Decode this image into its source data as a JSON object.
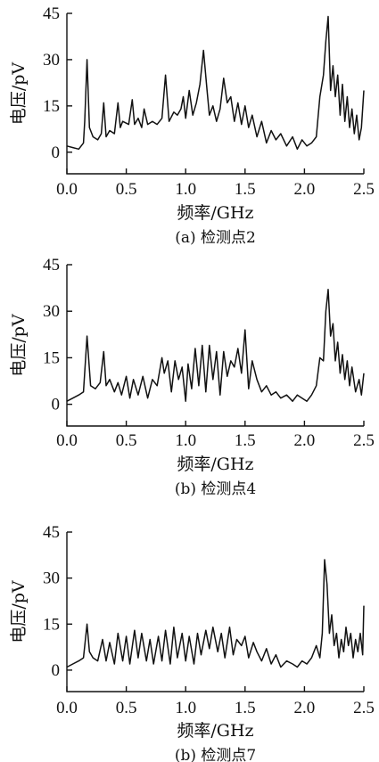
{
  "chart_data": [
    {
      "type": "line",
      "caption": "(a) 检测点2",
      "xlabel": "频率/GHz",
      "ylabel": "电压/pV",
      "xlim": [
        0,
        2.5
      ],
      "ylim": [
        -7,
        45
      ],
      "xticks": [
        "0.0",
        "0.5",
        "1.0",
        "1.5",
        "2.0",
        "2.5"
      ],
      "yticks": [
        "0",
        "15",
        "30",
        "45"
      ],
      "series": [
        {
          "x": [
            0.0,
            0.05,
            0.1,
            0.14,
            0.15,
            0.17,
            0.19,
            0.22,
            0.26,
            0.29,
            0.31,
            0.33,
            0.36,
            0.4,
            0.43,
            0.45,
            0.47,
            0.52,
            0.55,
            0.57,
            0.6,
            0.63,
            0.65,
            0.68,
            0.72,
            0.76,
            0.8,
            0.83,
            0.86,
            0.9,
            0.93,
            0.96,
            0.98,
            1.0,
            1.03,
            1.06,
            1.09,
            1.12,
            1.15,
            1.18,
            1.2,
            1.23,
            1.26,
            1.29,
            1.32,
            1.35,
            1.38,
            1.41,
            1.44,
            1.47,
            1.5,
            1.53,
            1.56,
            1.6,
            1.64,
            1.68,
            1.72,
            1.76,
            1.8,
            1.85,
            1.9,
            1.94,
            1.98,
            2.02,
            2.06,
            2.1,
            2.13,
            2.16,
            2.18,
            2.2,
            2.22,
            2.24,
            2.26,
            2.28,
            2.3,
            2.32,
            2.34,
            2.36,
            2.38,
            2.4,
            2.42,
            2.44,
            2.46,
            2.48,
            2.5
          ],
          "y": [
            2,
            1.5,
            1,
            3,
            10,
            30,
            8,
            5,
            4,
            6,
            16,
            5,
            7,
            6,
            16,
            8,
            10,
            9,
            17,
            9,
            11,
            8,
            14,
            9,
            10,
            9,
            11,
            25,
            10,
            13,
            12,
            14,
            18,
            11,
            20,
            12,
            16,
            22,
            33,
            20,
            12,
            15,
            10,
            14,
            24,
            16,
            18,
            10,
            16,
            9,
            15,
            8,
            12,
            5,
            10,
            3,
            7,
            4,
            6,
            2,
            5,
            1,
            4,
            2,
            3,
            5,
            18,
            25,
            36,
            44,
            20,
            28,
            18,
            25,
            12,
            22,
            10,
            18,
            8,
            14,
            6,
            12,
            4,
            8,
            20
          ]
        }
      ]
    },
    {
      "type": "line",
      "caption": "(b) 检测点4",
      "xlabel": "频率/GHz",
      "ylabel": "电压/pV",
      "xlim": [
        0,
        2.5
      ],
      "ylim": [
        -7,
        45
      ],
      "xticks": [
        "0.0",
        "0.5",
        "1.0",
        "1.5",
        "2.0",
        "2.5"
      ],
      "yticks": [
        "0",
        "15",
        "30",
        "45"
      ],
      "series": [
        {
          "x": [
            0.0,
            0.05,
            0.1,
            0.14,
            0.17,
            0.2,
            0.24,
            0.28,
            0.31,
            0.33,
            0.36,
            0.4,
            0.43,
            0.46,
            0.5,
            0.53,
            0.56,
            0.6,
            0.64,
            0.68,
            0.72,
            0.76,
            0.8,
            0.82,
            0.85,
            0.88,
            0.91,
            0.94,
            0.97,
            1.0,
            1.02,
            1.05,
            1.08,
            1.11,
            1.14,
            1.17,
            1.2,
            1.23,
            1.26,
            1.29,
            1.32,
            1.35,
            1.38,
            1.41,
            1.44,
            1.47,
            1.5,
            1.53,
            1.56,
            1.6,
            1.64,
            1.68,
            1.72,
            1.76,
            1.8,
            1.85,
            1.9,
            1.94,
            1.98,
            2.02,
            2.06,
            2.1,
            2.13,
            2.16,
            2.18,
            2.2,
            2.22,
            2.24,
            2.26,
            2.28,
            2.3,
            2.32,
            2.34,
            2.36,
            2.38,
            2.4,
            2.43,
            2.46,
            2.48,
            2.5
          ],
          "y": [
            1,
            2,
            3,
            4,
            22,
            6,
            5,
            7,
            17,
            6,
            8,
            4,
            7,
            3,
            9,
            2,
            8,
            3,
            9,
            2,
            8,
            6,
            15,
            10,
            14,
            4,
            14,
            8,
            12,
            1,
            13,
            5,
            18,
            6,
            19,
            4,
            19,
            8,
            17,
            3,
            17,
            9,
            14,
            12,
            18,
            10,
            24,
            5,
            14,
            8,
            4,
            6,
            3,
            4,
            2,
            3,
            1,
            3,
            2,
            1,
            3,
            6,
            15,
            14,
            30,
            37,
            22,
            26,
            14,
            20,
            10,
            16,
            8,
            14,
            6,
            12,
            4,
            8,
            3,
            10
          ]
        }
      ]
    },
    {
      "type": "line",
      "caption": "(b) 检测点7",
      "xlabel": "频率/GHz",
      "ylabel": "电压/pV",
      "xlim": [
        0,
        2.5
      ],
      "ylim": [
        -7,
        45
      ],
      "xticks": [
        "0.0",
        "0.5",
        "1.0",
        "1.5",
        "2.0",
        "2.5"
      ],
      "yticks": [
        "0",
        "15",
        "30",
        "45"
      ],
      "series": [
        {
          "x": [
            0.0,
            0.05,
            0.1,
            0.14,
            0.17,
            0.19,
            0.22,
            0.26,
            0.3,
            0.33,
            0.36,
            0.4,
            0.43,
            0.47,
            0.5,
            0.53,
            0.57,
            0.6,
            0.63,
            0.67,
            0.7,
            0.73,
            0.77,
            0.8,
            0.83,
            0.87,
            0.9,
            0.93,
            0.97,
            1.0,
            1.03,
            1.07,
            1.1,
            1.13,
            1.17,
            1.2,
            1.23,
            1.27,
            1.3,
            1.33,
            1.37,
            1.4,
            1.43,
            1.47,
            1.5,
            1.53,
            1.57,
            1.6,
            1.64,
            1.68,
            1.72,
            1.76,
            1.8,
            1.85,
            1.9,
            1.94,
            1.98,
            2.02,
            2.06,
            2.1,
            2.13,
            2.15,
            2.17,
            2.19,
            2.21,
            2.23,
            2.25,
            2.27,
            2.29,
            2.31,
            2.33,
            2.35,
            2.37,
            2.39,
            2.41,
            2.43,
            2.45,
            2.47,
            2.49,
            2.5
          ],
          "y": [
            1,
            2,
            3,
            4,
            15,
            6,
            4,
            3,
            10,
            3,
            9,
            2,
            12,
            3,
            11,
            2,
            13,
            4,
            12,
            3,
            10,
            2,
            11,
            3,
            13,
            2,
            14,
            4,
            12,
            3,
            11,
            2,
            12,
            5,
            13,
            7,
            14,
            6,
            12,
            4,
            14,
            5,
            10,
            8,
            11,
            4,
            9,
            6,
            3,
            7,
            2,
            5,
            1,
            3,
            2,
            1,
            3,
            2,
            4,
            8,
            4,
            12,
            36,
            28,
            12,
            18,
            8,
            12,
            4,
            10,
            6,
            14,
            8,
            12,
            4,
            10,
            6,
            12,
            5,
            21
          ]
        }
      ]
    }
  ]
}
